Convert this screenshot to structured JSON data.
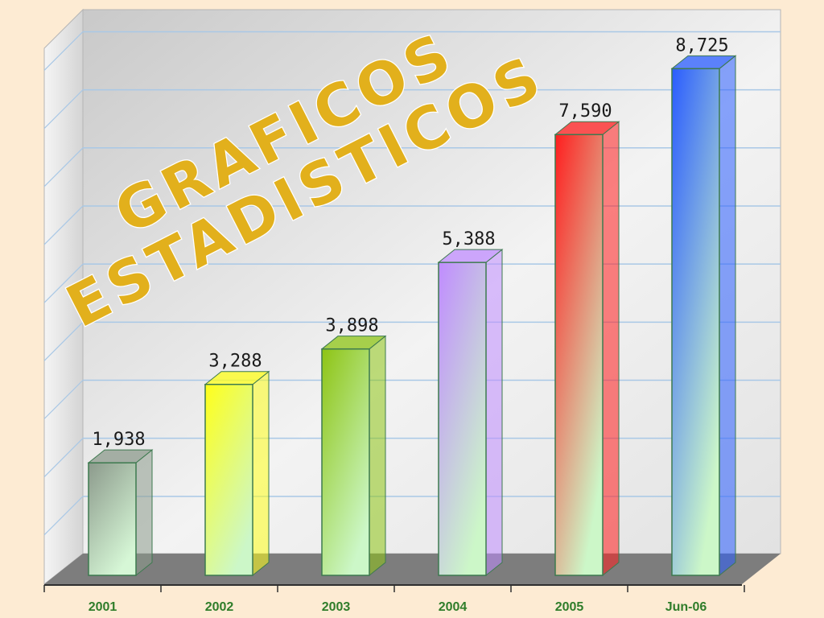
{
  "chart_data": {
    "type": "bar",
    "title_lines": [
      "GRAFICOS",
      "ESTADISTICOS"
    ],
    "categories": [
      "2001",
      "2002",
      "2003",
      "2004",
      "2005",
      "Jun-06"
    ],
    "values": [
      1938,
      3288,
      3898,
      5388,
      7590,
      8725
    ],
    "value_labels": [
      "1,938",
      "3,288",
      "3,898",
      "5,388",
      "7,590",
      "8,725"
    ],
    "ylim": [
      0,
      9000
    ],
    "grid": true,
    "legend": "none",
    "colors": [
      [
        "#8c9a8c",
        "#d6f7d6"
      ],
      [
        "#ffff1a",
        "#ccf7c8"
      ],
      [
        "#8ec414",
        "#ccf7c8"
      ],
      [
        "#c08cff",
        "#ccf7c8"
      ],
      [
        "#ff1e1e",
        "#ccf7c8"
      ],
      [
        "#2a5cff",
        "#ccf7c8"
      ]
    ]
  }
}
